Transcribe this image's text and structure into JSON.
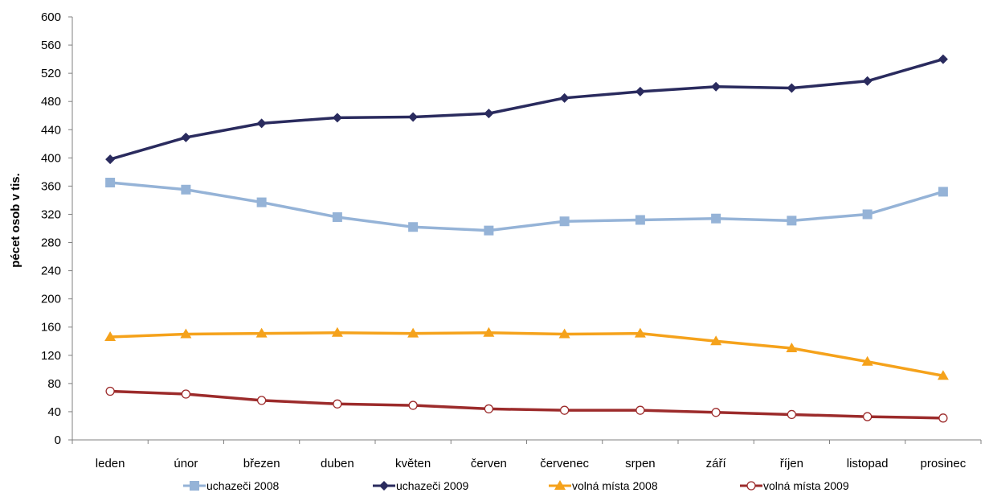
{
  "chart_data": {
    "type": "line",
    "title": "",
    "xlabel": "",
    "ylabel": "pécet osob v tis.",
    "ylim": [
      0,
      600
    ],
    "yticks": [
      0,
      40,
      80,
      120,
      160,
      200,
      240,
      280,
      320,
      360,
      400,
      440,
      480,
      520,
      560,
      600
    ],
    "grid": false,
    "legend_position": "bottom",
    "categories": [
      "leden",
      "únor",
      "březen",
      "duben",
      "květen",
      "červen",
      "červenec",
      "srpen",
      "září",
      "říjen",
      "listopad",
      "prosinec"
    ],
    "series": [
      {
        "name": "uchazeči 2008",
        "color": "#95b3d7",
        "marker": "square",
        "values": [
          365,
          355,
          337,
          316,
          302,
          297,
          310,
          312,
          314,
          311,
          320,
          352
        ]
      },
      {
        "name": "uchazeči 2009",
        "color": "#2a2b5e",
        "marker": "diamond",
        "values": [
          398,
          429,
          449,
          457,
          458,
          463,
          485,
          494,
          501,
          499,
          509,
          540
        ]
      },
      {
        "name": "volná místa 2008",
        "color": "#f5a21b",
        "marker": "triangle",
        "values": [
          146,
          150,
          151,
          152,
          151,
          152,
          150,
          151,
          140,
          130,
          111,
          91
        ]
      },
      {
        "name": "volná místa 2009",
        "color": "#9c2b2b",
        "marker": "circle",
        "values": [
          69,
          65,
          56,
          51,
          49,
          44,
          42,
          42,
          39,
          36,
          33,
          31
        ]
      }
    ]
  }
}
